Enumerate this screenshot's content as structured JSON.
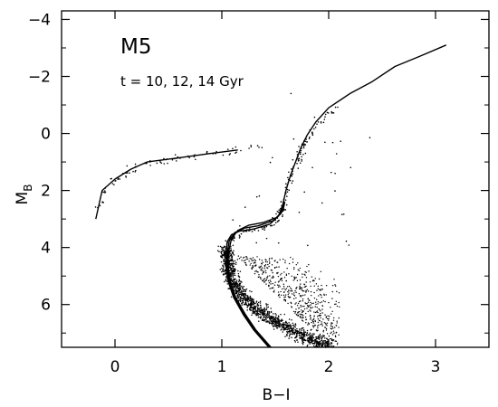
{
  "chart_data": {
    "type": "scatter",
    "title": "",
    "xlabel": "B−I",
    "ylabel_main": "M",
    "ylabel_sub": "B",
    "annotations": [
      "M5",
      "t = 10, 12, 14 Gyr"
    ],
    "xlim": [
      -0.5,
      3.5
    ],
    "ylim": [
      7.5,
      -4.3
    ],
    "xticks": [
      0,
      1,
      2,
      3
    ],
    "xtick_labels": [
      "0",
      "1",
      "2",
      "3"
    ],
    "yticks": [
      -4,
      -2,
      0,
      2,
      4,
      6
    ],
    "ytick_labels": [
      "−4",
      "−2",
      "0",
      "2",
      "4",
      "6"
    ],
    "grid": false,
    "series": [
      {
        "kind": "isochrone",
        "label": "",
        "points": [
          [
            1.44,
            7.5
          ],
          [
            1.3,
            6.9
          ],
          [
            1.2,
            6.35
          ],
          [
            1.11,
            5.75
          ],
          [
            1.06,
            5.2
          ],
          [
            1.04,
            4.7
          ],
          [
            1.04,
            4.2
          ],
          [
            1.05,
            3.8
          ],
          [
            1.09,
            3.55
          ],
          [
            1.17,
            3.42
          ],
          [
            1.3,
            3.35
          ],
          [
            1.45,
            3.18
          ],
          [
            1.53,
            2.9
          ],
          [
            1.57,
            2.5
          ],
          [
            1.6,
            2.0
          ],
          [
            1.64,
            1.5
          ],
          [
            1.69,
            1.0
          ],
          [
            1.74,
            0.5
          ],
          [
            1.8,
            0.05
          ],
          [
            1.88,
            -0.4
          ],
          [
            2.0,
            -0.9
          ],
          [
            2.2,
            -1.4
          ],
          [
            2.4,
            -1.8
          ],
          [
            2.62,
            -2.35
          ],
          [
            2.85,
            -2.7
          ],
          [
            3.1,
            -3.1
          ]
        ]
      },
      {
        "kind": "isochrone",
        "label": "",
        "points": [
          [
            1.45,
            7.5
          ],
          [
            1.31,
            6.9
          ],
          [
            1.21,
            6.35
          ],
          [
            1.12,
            5.75
          ],
          [
            1.07,
            5.2
          ],
          [
            1.05,
            4.7
          ],
          [
            1.05,
            4.2
          ],
          [
            1.07,
            3.75
          ],
          [
            1.12,
            3.48
          ],
          [
            1.21,
            3.32
          ],
          [
            1.34,
            3.24
          ],
          [
            1.48,
            3.06
          ],
          [
            1.55,
            2.82
          ],
          [
            1.58,
            2.45
          ]
        ]
      },
      {
        "kind": "isochrone",
        "label": "",
        "points": [
          [
            1.46,
            7.5
          ],
          [
            1.32,
            6.9
          ],
          [
            1.22,
            6.35
          ],
          [
            1.13,
            5.75
          ],
          [
            1.08,
            5.2
          ],
          [
            1.06,
            4.7
          ],
          [
            1.06,
            4.2
          ],
          [
            1.09,
            3.7
          ],
          [
            1.15,
            3.4
          ],
          [
            1.25,
            3.22
          ],
          [
            1.39,
            3.12
          ],
          [
            1.51,
            2.95
          ],
          [
            1.57,
            2.72
          ],
          [
            1.59,
            2.4
          ]
        ]
      },
      {
        "kind": "horizontal-branch",
        "label": "",
        "points": [
          [
            -0.18,
            3.0
          ],
          [
            -0.15,
            2.5
          ],
          [
            -0.12,
            2.0
          ],
          [
            0.0,
            1.6
          ],
          [
            0.15,
            1.25
          ],
          [
            0.3,
            1.0
          ],
          [
            0.6,
            0.85
          ],
          [
            0.9,
            0.7
          ],
          [
            1.15,
            0.58
          ]
        ]
      }
    ],
    "stars": {
      "description_free": true,
      "main_sequence_ridge": [
        [
          1.04,
          4.0
        ],
        [
          1.06,
          4.7
        ],
        [
          1.12,
          5.3
        ],
        [
          1.22,
          5.8
        ],
        [
          1.38,
          6.3
        ],
        [
          1.6,
          6.8
        ],
        [
          1.85,
          7.25
        ],
        [
          2.0,
          7.5
        ]
      ],
      "subgiant_ridge": [
        [
          1.05,
          3.8
        ],
        [
          1.2,
          3.45
        ],
        [
          1.45,
          3.25
        ],
        [
          1.55,
          2.9
        ],
        [
          1.6,
          2.3
        ],
        [
          1.65,
          1.5
        ],
        [
          1.72,
          0.8
        ],
        [
          1.8,
          0.2
        ],
        [
          1.9,
          -0.3
        ],
        [
          2.05,
          -0.8
        ]
      ],
      "field_region": {
        "x": [
          1.15,
          2.1
        ],
        "y": [
          4.3,
          7.4
        ]
      },
      "hb_region": [
        [
          -0.17,
          2.7
        ],
        [
          -0.12,
          2.1
        ],
        [
          0.05,
          1.5
        ],
        [
          0.3,
          1.05
        ],
        [
          0.65,
          0.85
        ],
        [
          1.1,
          0.6
        ],
        [
          1.35,
          0.45
        ]
      ],
      "count_ms": 1400,
      "count_field": 650,
      "count_giant": 160,
      "count_hb": 80,
      "count_scatter": 40
    }
  }
}
